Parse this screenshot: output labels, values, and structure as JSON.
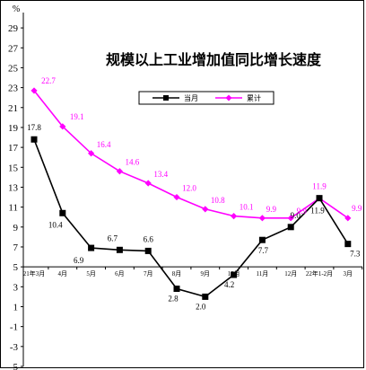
{
  "chart_data": {
    "type": "line",
    "title": "规模以上工业增加值同比增长速度",
    "unit": "%",
    "categories": [
      "21年3月",
      "4月",
      "5月",
      "6月",
      "7月",
      "8月",
      "9月",
      "10月",
      "11月",
      "12月",
      "22年1-2月",
      "3月"
    ],
    "ylim": [
      -5,
      30
    ],
    "yticks": [
      -5,
      -3,
      -1,
      1,
      3,
      5,
      7,
      9,
      11,
      13,
      15,
      17,
      19,
      21,
      23,
      25,
      27,
      29
    ],
    "x_axis_at": 5,
    "grid": false,
    "legend_position": "top-center",
    "series": [
      {
        "name": "当月",
        "color": "#000000",
        "marker": "square",
        "values": [
          17.8,
          10.4,
          6.9,
          6.7,
          6.6,
          2.8,
          2.0,
          4.2,
          7.7,
          9.0,
          11.9,
          7.3
        ],
        "labels": [
          "17.8",
          "10.4",
          "6.9",
          "6.7",
          "6.6",
          "2.8",
          "2.0",
          "4.2",
          "7.7",
          "9.0",
          "11.9",
          "7.3"
        ]
      },
      {
        "name": "累计",
        "color": "#ff00ff",
        "marker": "diamond",
        "values": [
          22.7,
          19.1,
          16.4,
          14.6,
          13.4,
          12.0,
          10.8,
          10.1,
          9.9,
          9.9,
          11.9,
          9.9
        ],
        "labels": [
          "22.7",
          "19.1",
          "16.4",
          "14.6",
          "13.4",
          "12.0",
          "10.8",
          "10.1",
          "9.9",
          "9.9",
          "11.9",
          "9.9"
        ]
      }
    ]
  }
}
